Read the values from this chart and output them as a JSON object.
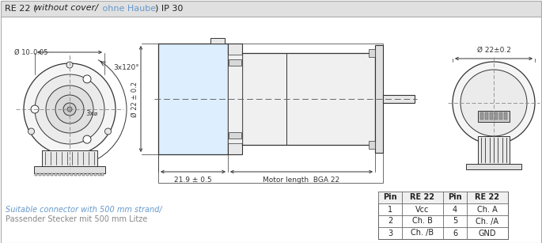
{
  "bg_header": "#e0e0e0",
  "bg_body": "#ffffff",
  "border_color": "#888888",
  "dark": "#333333",
  "mid": "#666666",
  "blue_color": "#6699cc",
  "light_blue_fill": "#ddeeff",
  "connector_text_line1": "Suitable connector with 500 mm strand/",
  "connector_text_line2": "Passender Stecker mit 500 mm Litze",
  "table_headers": [
    "Pin",
    "RE 22",
    "Pin",
    "RE 22"
  ],
  "table_rows": [
    [
      "1",
      "Vcc",
      "4",
      "Ch. A"
    ],
    [
      "2",
      "Ch. B",
      "5",
      "Ch. /A"
    ],
    [
      "3",
      "Ch. /B",
      "6",
      "GND"
    ]
  ]
}
